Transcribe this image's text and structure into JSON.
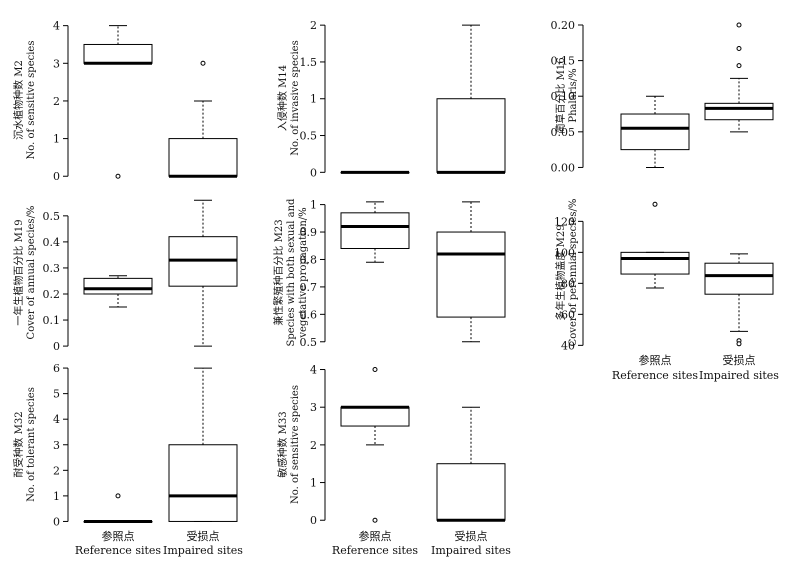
{
  "chart_data": [
    {
      "type": "boxplot",
      "ylabel": [
        "沉水植物种数 M2",
        "No. of sensitive species"
      ],
      "yticks": [
        0,
        1,
        2,
        3,
        4
      ],
      "ylim": [
        -0.1,
        4.15
      ],
      "groups": [
        {
          "q1": 3.0,
          "median": 3.0,
          "q3": 3.5,
          "lower": 3.0,
          "upper": 4.0,
          "outliers": [
            0
          ]
        },
        {
          "q1": 0.0,
          "median": 0.0,
          "q3": 1.0,
          "lower": 0.0,
          "upper": 2.0,
          "outliers": [
            3
          ]
        }
      ]
    },
    {
      "type": "boxplot",
      "ylabel": [
        "入侵种数 M14",
        "No. of invasive species"
      ],
      "yticks": [
        0.0,
        0.5,
        1.0,
        1.5,
        2.0
      ],
      "ylim": [
        -0.05,
        2.07
      ],
      "groups": [
        {
          "q1": 0.0,
          "median": 0.0,
          "q3": 0.0,
          "lower": 0.0,
          "upper": 0.0,
          "outliers": []
        },
        {
          "q1": 0.0,
          "median": 0.0,
          "q3": 1.0,
          "lower": 0.0,
          "upper": 2.0,
          "outliers": []
        }
      ]
    },
    {
      "type": "boxplot",
      "ylabel": [
        "蔺草百分比 M16",
        "Phalaris/%"
      ],
      "yticks": [
        0.0,
        0.05,
        0.1,
        0.15,
        0.2
      ],
      "tick_format": 2,
      "ylim": [
        -0.005,
        0.207
      ],
      "groups": [
        {
          "q1": 0.025,
          "median": 0.055,
          "q3": 0.075,
          "lower": 0.0,
          "upper": 0.1,
          "outliers": []
        },
        {
          "q1": 0.067,
          "median": 0.083,
          "q3": 0.09,
          "lower": 0.05,
          "upper": 0.125,
          "outliers": [
            0.143,
            0.167,
            0.2
          ]
        }
      ]
    },
    {
      "type": "boxplot",
      "ylabel": [
        "一年生植物百分比 M19",
        "Cover of annual species/%"
      ],
      "yticks": [
        0.0,
        0.1,
        0.2,
        0.3,
        0.4,
        0.5
      ],
      "ylim": [
        -0.015,
        0.58
      ],
      "groups": [
        {
          "q1": 0.2,
          "median": 0.22,
          "q3": 0.26,
          "lower": 0.15,
          "upper": 0.27,
          "outliers": []
        },
        {
          "q1": 0.23,
          "median": 0.33,
          "q3": 0.42,
          "lower": 0.0,
          "upper": 0.56,
          "outliers": []
        }
      ]
    },
    {
      "type": "boxplot",
      "ylabel": [
        "兼性繁殖种百分比 M23",
        "Species with both sexual and",
        "vegetative propagation/%"
      ],
      "yticks": [
        0.5,
        0.6,
        0.7,
        0.8,
        0.9,
        1.0
      ],
      "ylim": [
        0.47,
        1.035
      ],
      "groups": [
        {
          "q1": 0.84,
          "median": 0.92,
          "q3": 0.97,
          "lower": 0.79,
          "upper": 1.01,
          "outliers": []
        },
        {
          "q1": 0.59,
          "median": 0.82,
          "q3": 0.9,
          "lower": 0.5,
          "upper": 1.01,
          "outliers": []
        }
      ]
    },
    {
      "type": "boxplot",
      "ylabel": [
        "多年生植物盖度 M29",
        "Cover of perennial species/%"
      ],
      "yticks": [
        40,
        60,
        80,
        100,
        120
      ],
      "ylim": [
        37,
        137
      ],
      "groups": [
        {
          "q1": 86,
          "median": 96,
          "q3": 100,
          "lower": 77,
          "upper": 100,
          "outliers": [
            131
          ]
        },
        {
          "q1": 73,
          "median": 85,
          "q3": 93,
          "lower": 49,
          "upper": 99,
          "outliers": [
            43,
            41
          ]
        }
      ]
    },
    {
      "type": "boxplot",
      "ylabel": [
        "耐受种数 M32",
        "No. of tolerant species"
      ],
      "yticks": [
        0,
        1,
        2,
        3,
        4,
        5,
        6
      ],
      "ylim": [
        -0.1,
        6.12
      ],
      "groups": [
        {
          "q1": 0,
          "median": 0,
          "q3": 0,
          "lower": 0,
          "upper": 0,
          "outliers": [
            1
          ]
        },
        {
          "q1": 0,
          "median": 1,
          "q3": 3,
          "lower": 0,
          "upper": 6,
          "outliers": []
        }
      ]
    },
    {
      "type": "boxplot",
      "ylabel": [
        "敏感种数 M33",
        "No. of sensitive species"
      ],
      "yticks": [
        0,
        1,
        2,
        3,
        4
      ],
      "ylim": [
        -0.1,
        4.12
      ],
      "groups": [
        {
          "q1": 2.5,
          "median": 3.0,
          "q3": 3.0,
          "lower": 2.0,
          "upper": 3.0,
          "outliers": [
            4,
            0
          ]
        },
        {
          "q1": 0.0,
          "median": 0.0,
          "q3": 1.5,
          "lower": 0.0,
          "upper": 3.0,
          "outliers": []
        }
      ]
    }
  ],
  "x_axis": {
    "categories": [
      {
        "cn": "参照点",
        "en": "Reference sites"
      },
      {
        "cn": "受损点",
        "en": "Impaired sites"
      }
    ]
  }
}
